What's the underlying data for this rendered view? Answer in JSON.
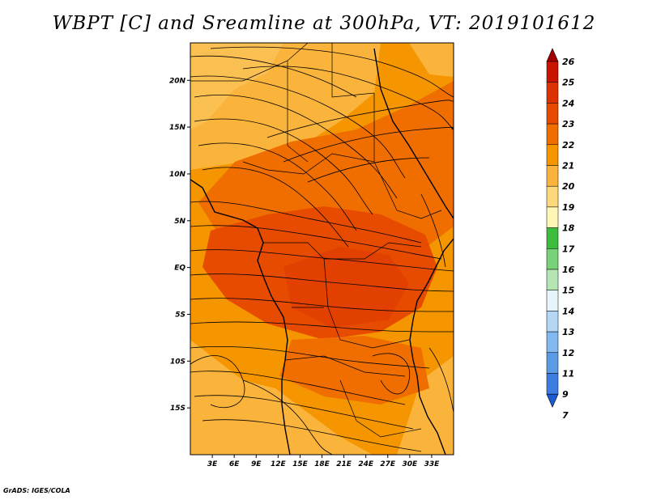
{
  "title": "WBPT [C] and Sreamline at 300hPa, VT: 2019101612",
  "credit": "GrADS: IGES/COLA",
  "map": {
    "lon_range": [
      0,
      36
    ],
    "lat_range": [
      -20,
      24
    ],
    "x_ticks": [
      "3E",
      "6E",
      "9E",
      "12E",
      "15E",
      "18E",
      "21E",
      "24E",
      "27E",
      "30E",
      "33E"
    ],
    "x_tick_values": [
      3,
      6,
      9,
      12,
      15,
      18,
      21,
      24,
      27,
      30,
      33
    ],
    "y_ticks": [
      "20N",
      "15N",
      "10N",
      "5N",
      "EQ",
      "5S",
      "10S",
      "15S"
    ],
    "y_tick_values": [
      20,
      15,
      10,
      5,
      0,
      -5,
      -10,
      -15
    ]
  },
  "colorbar": {
    "labels": [
      "26",
      "25",
      "24",
      "23",
      "22",
      "21",
      "20",
      "19",
      "18",
      "17",
      "16",
      "15",
      "14",
      "13",
      "12",
      "11",
      "9",
      "7"
    ],
    "colors": [
      "#a50000",
      "#c81400",
      "#dc3200",
      "#e64b00",
      "#f06e00",
      "#f59600",
      "#fab43c",
      "#fcd87a",
      "#fff5b4",
      "#3cbe3c",
      "#78d278",
      "#b4e6b4",
      "#e6f5fa",
      "#b4d7f5",
      "#82b9f0",
      "#5a9be6",
      "#3c7de1",
      "#1e5ad2"
    ]
  }
}
